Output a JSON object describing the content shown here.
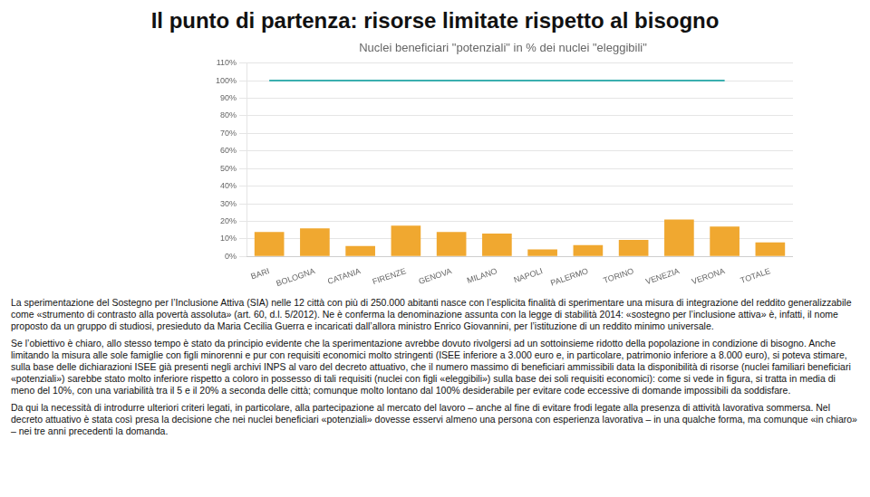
{
  "chart_data": {
    "type": "bar",
    "title": "Il punto di partenza: risorse limitate rispetto al bisogno",
    "subtitle": "Nuclei beneficiari \"potenziali\" in % dei nuclei \"eleggibili\"",
    "categories": [
      "BARI",
      "BOLOGNA",
      "CATANIA",
      "FIRENZE",
      "GENOVA",
      "MILANO",
      "NAPOLI",
      "PALERMO",
      "TORINO",
      "VENEZIA",
      "VERONA",
      "TOTALE"
    ],
    "series": [
      {
        "type": "bar",
        "color": "#F0A830",
        "values": [
          14.0,
          16.0,
          6.0,
          17.5,
          14.0,
          13.0,
          4.0,
          6.5,
          9.5,
          21.0,
          17.0,
          8.0
        ]
      },
      {
        "type": "line",
        "color": "#3AAFAF",
        "values": [
          100,
          100,
          100,
          100,
          100,
          100,
          100,
          100,
          100,
          100,
          100,
          null
        ]
      }
    ],
    "ylim": [
      0,
      110
    ],
    "yticks": [
      {
        "value": 0,
        "label": "0%"
      },
      {
        "value": 10,
        "label": "10%"
      },
      {
        "value": 20,
        "label": "20%"
      },
      {
        "value": 30,
        "label": "30%"
      },
      {
        "value": 40,
        "label": "40%"
      },
      {
        "value": 50,
        "label": "50%"
      },
      {
        "value": 60,
        "label": "60%"
      },
      {
        "value": 70,
        "label": "70%"
      },
      {
        "value": 80,
        "label": "80%"
      },
      {
        "value": 90,
        "label": "90%"
      },
      {
        "value": 100,
        "label": "100%"
      },
      {
        "value": 110,
        "label": "110%"
      }
    ],
    "grid": true,
    "annotations": [
      "La sperimentazione del Sostegno per l’Inclusione Attiva (SIA) nelle 12 città con più di 250.000 abitanti nasce con l’esplicita finalità di sperimentare una misura di integrazione del reddito generalizzabile come «strumento di contrasto alla povertà assoluta» (art. 60, d.l. 5/2012). Ne è conferma la denominazione assunta con la legge di stabilità 2014: «sostegno per l’inclusione attiva» è, infatti, il nome proposto da un gruppo di studiosi, presieduto da Maria Cecilia Guerra e incaricati dall’allora ministro Enrico Giovannini, per l’istituzione di un reddito minimo universale.",
      "Se l’obiettivo è chiaro, allo stesso tempo è stato da principio evidente che la sperimentazione avrebbe dovuto rivolgersi ad un sottoinsieme ridotto della popolazione in condizione di bisogno. Anche limitando la misura alle sole famiglie con figli minorenni e pur con requisiti economici molto stringenti (ISEE inferiore a 3.000 euro e, in particolare, patrimonio inferiore a 8.000 euro), si poteva stimare, sulla base delle dichiarazioni ISEE già presenti negli archivi INPS al varo del decreto attuativo, che il numero massimo di beneficiari ammissibili data la disponibilità di risorse (nuclei familiari beneficiari «potenziali») sarebbe stato molto inferiore rispetto a coloro in possesso di tali requisiti (nuclei con figli «eleggibili») sulla base dei soli requisiti economici): come si vede in figura, si tratta in media di meno del 10%, con una variabilità tra il 5 e il 20% a seconda delle città; comunque molto lontano dal 100% desiderabile per evitare code eccessive di domande impossibili da soddisfare.",
      "Da qui la necessità di introdurre ulteriori criteri legati, in particolare, alla partecipazione al mercato del lavoro – anche al fine di evitare frodi legate alla presenza di attività lavorativa sommersa. Nel decreto attuativo è stata così presa la decisione che nei nuclei beneficiari «potenziali» dovesse esservi almeno una persona con esperienza lavorativa – in una qualche forma, ma comunque «in chiaro» – nei tre anni precedenti la domanda."
    ]
  }
}
